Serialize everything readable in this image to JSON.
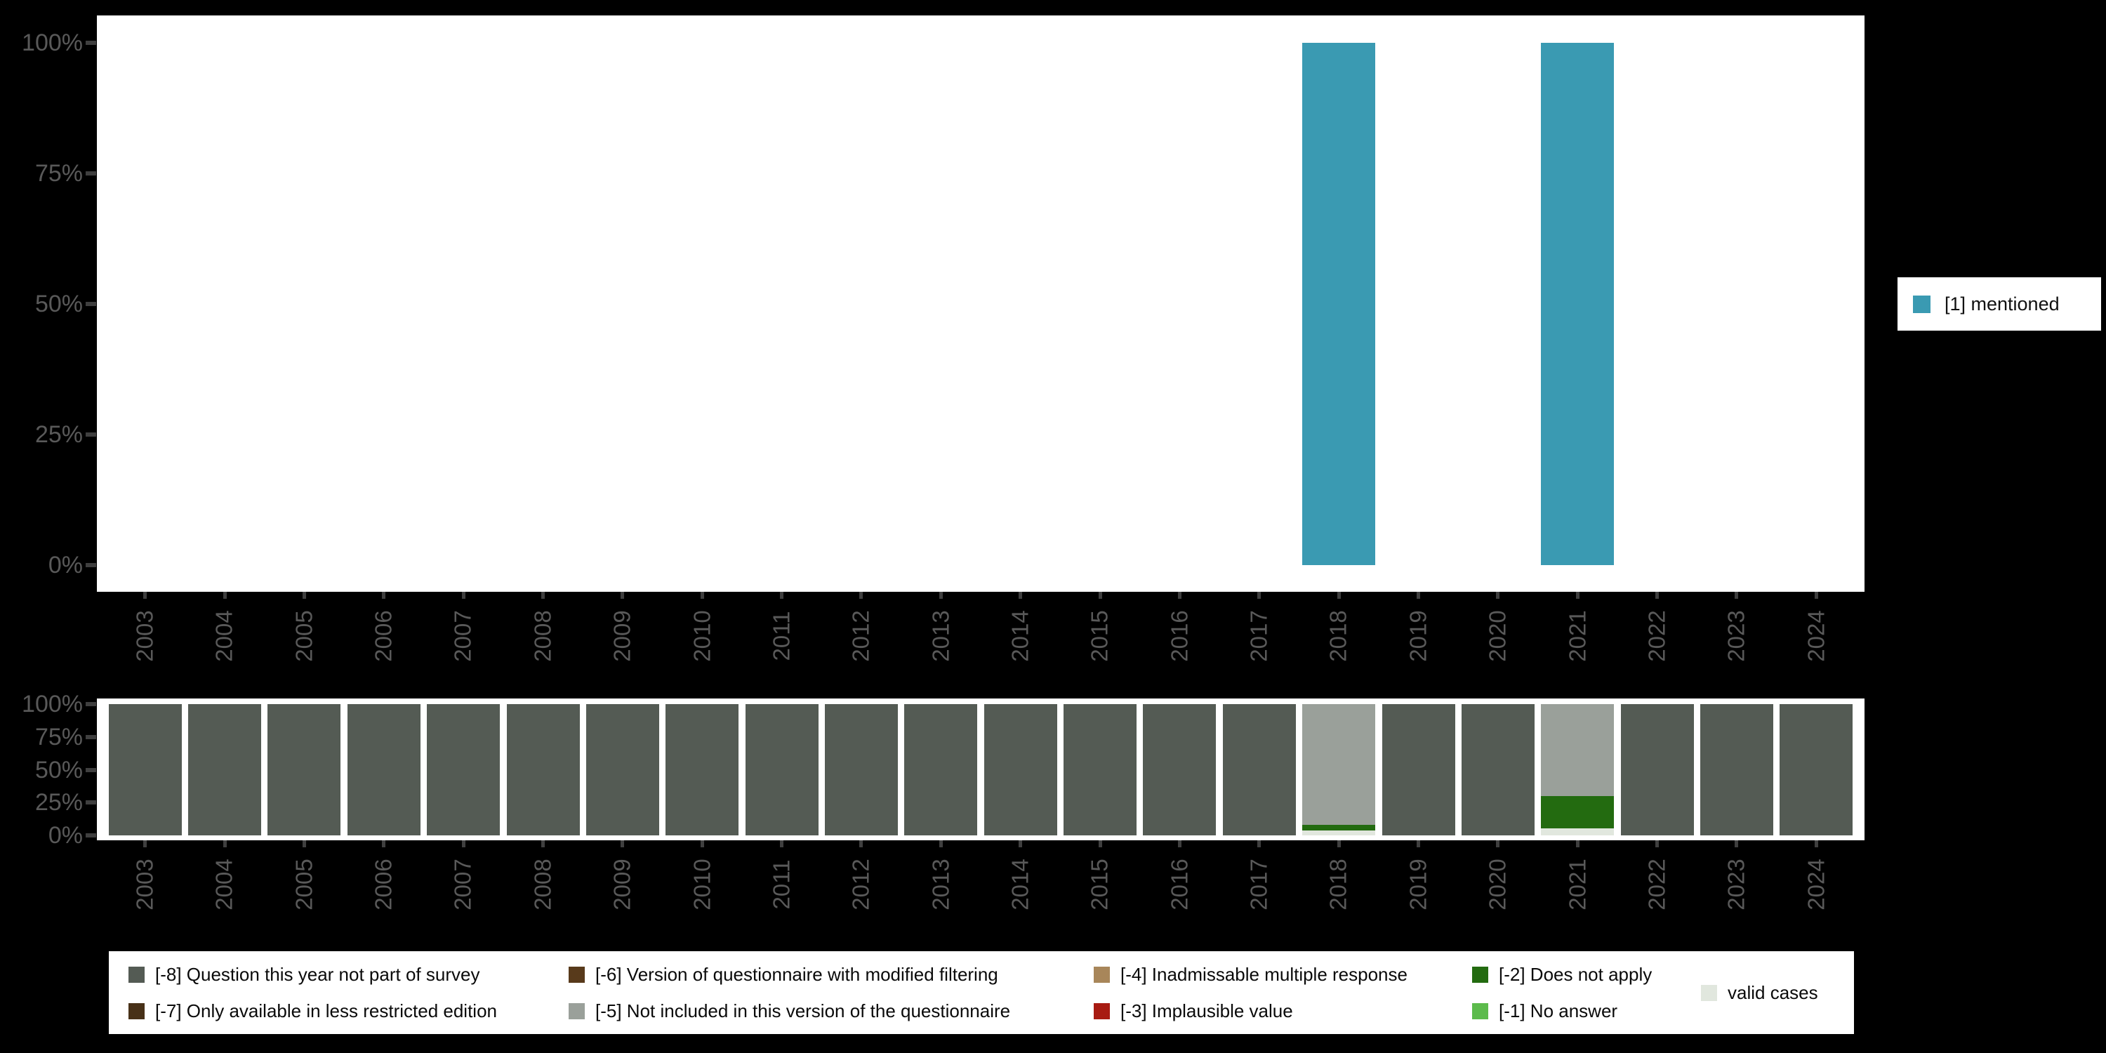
{
  "years": [
    "2003",
    "2004",
    "2005",
    "2006",
    "2007",
    "2008",
    "2009",
    "2010",
    "2011",
    "2012",
    "2013",
    "2014",
    "2015",
    "2016",
    "2017",
    "2018",
    "2019",
    "2020",
    "2021",
    "2022",
    "2023",
    "2024"
  ],
  "y_axis_ticks_top_to_bottom": [
    "100%",
    "75%",
    "50%",
    "25%",
    "0%"
  ],
  "colors": {
    "background": "#000000",
    "panel": "#ffffff",
    "axis_text": "#595959",
    "tick_mark": "#3f3f3f",
    "mentioned": "#3A9AB2"
  },
  "legend_mentioned": {
    "label": "[1] mentioned",
    "color": "#3A9AB2"
  },
  "missing_legend_columns": [
    [
      {
        "label": "[-8] Question this year not part of survey",
        "color": "#545B54"
      },
      {
        "label": "[-7] Only available in less restricted edition",
        "color": "#483118"
      }
    ],
    [
      {
        "label": "[-6] Version of questionnaire with modified filtering",
        "color": "#583A1B"
      },
      {
        "label": "[-5] Not included in this version of the questionnaire",
        "color": "#9AA09A"
      }
    ],
    [
      {
        "label": "[-4] Inadmissable multiple response",
        "color": "#A8865A"
      },
      {
        "label": "[-3] Implausible value",
        "color": "#A81B12"
      }
    ],
    [
      {
        "label": "[-2] Does not apply",
        "color": "#236B10"
      },
      {
        "label": "[-1] No answer",
        "color": "#5CBB4C"
      }
    ],
    [
      {
        "label": "valid cases",
        "color": "#E1E7DE"
      }
    ]
  ],
  "chart_data": [
    {
      "type": "bar",
      "panel": "top",
      "title": "",
      "categories": [
        "2003",
        "2004",
        "2005",
        "2006",
        "2007",
        "2008",
        "2009",
        "2010",
        "2011",
        "2012",
        "2013",
        "2014",
        "2015",
        "2016",
        "2017",
        "2018",
        "2019",
        "2020",
        "2021",
        "2022",
        "2023",
        "2024"
      ],
      "series": [
        {
          "name": "[1] mentioned",
          "color": "#3A9AB2",
          "values": [
            0,
            0,
            0,
            0,
            0,
            0,
            0,
            0,
            0,
            0,
            0,
            0,
            0,
            0,
            0,
            100,
            0,
            0,
            100,
            0,
            0,
            0
          ]
        }
      ],
      "ylabel": "",
      "ylim": [
        0,
        100
      ],
      "ytick_values": [
        0,
        25,
        50,
        75,
        100
      ],
      "grid": false,
      "legend_position": "right"
    },
    {
      "type": "bar",
      "stacked": true,
      "panel": "bottom",
      "title": "",
      "categories": [
        "2003",
        "2004",
        "2005",
        "2006",
        "2007",
        "2008",
        "2009",
        "2010",
        "2011",
        "2012",
        "2013",
        "2014",
        "2015",
        "2016",
        "2017",
        "2018",
        "2019",
        "2020",
        "2021",
        "2022",
        "2023",
        "2024"
      ],
      "series": [
        {
          "name": "[-8] Question this year not part of survey",
          "color": "#545B54",
          "values": [
            100,
            100,
            100,
            100,
            100,
            100,
            100,
            100,
            100,
            100,
            100,
            100,
            100,
            100,
            100,
            0,
            100,
            100,
            0,
            100,
            100,
            100
          ]
        },
        {
          "name": "[-7] Only available in less restricted edition",
          "color": "#483118",
          "values": [
            0,
            0,
            0,
            0,
            0,
            0,
            0,
            0,
            0,
            0,
            0,
            0,
            0,
            0,
            0,
            0,
            0,
            0,
            0,
            0,
            0,
            0
          ]
        },
        {
          "name": "[-6] Version of questionnaire with modified filtering",
          "color": "#583A1B",
          "values": [
            0,
            0,
            0,
            0,
            0,
            0,
            0,
            0,
            0,
            0,
            0,
            0,
            0,
            0,
            0,
            0,
            0,
            0,
            0,
            0,
            0,
            0
          ]
        },
        {
          "name": "[-5] Not included in this version of the questionnaire",
          "color": "#9AA09A",
          "values": [
            0,
            0,
            0,
            0,
            0,
            0,
            0,
            0,
            0,
            0,
            0,
            0,
            0,
            0,
            0,
            92,
            0,
            0,
            70,
            0,
            0,
            0
          ]
        },
        {
          "name": "[-4] Inadmissable multiple response",
          "color": "#A8865A",
          "values": [
            0,
            0,
            0,
            0,
            0,
            0,
            0,
            0,
            0,
            0,
            0,
            0,
            0,
            0,
            0,
            0,
            0,
            0,
            0,
            0,
            0,
            0
          ]
        },
        {
          "name": "[-3] Implausible value",
          "color": "#A81B12",
          "values": [
            0,
            0,
            0,
            0,
            0,
            0,
            0,
            0,
            0,
            0,
            0,
            0,
            0,
            0,
            0,
            0,
            0,
            0,
            0,
            0,
            0,
            0
          ]
        },
        {
          "name": "[-2] Does not apply",
          "color": "#236B10",
          "values": [
            0,
            0,
            0,
            0,
            0,
            0,
            0,
            0,
            0,
            0,
            0,
            0,
            0,
            0,
            0,
            4,
            0,
            0,
            24.5,
            0,
            0,
            0
          ]
        },
        {
          "name": "[-1] No answer",
          "color": "#5CBB4C",
          "values": [
            0,
            0,
            0,
            0,
            0,
            0,
            0,
            0,
            0,
            0,
            0,
            0,
            0,
            0,
            0,
            0,
            0,
            0,
            0,
            0,
            0,
            0
          ]
        },
        {
          "name": "valid cases",
          "color": "#E1E7DE",
          "values": [
            0,
            0,
            0,
            0,
            0,
            0,
            0,
            0,
            0,
            0,
            0,
            0,
            0,
            0,
            0,
            4,
            0,
            0,
            5.5,
            0,
            0,
            0
          ]
        }
      ],
      "ylabel": "",
      "ylim": [
        0,
        100
      ],
      "ytick_values": [
        0,
        25,
        50,
        75,
        100
      ],
      "grid": false,
      "legend_position": "bottom"
    }
  ]
}
